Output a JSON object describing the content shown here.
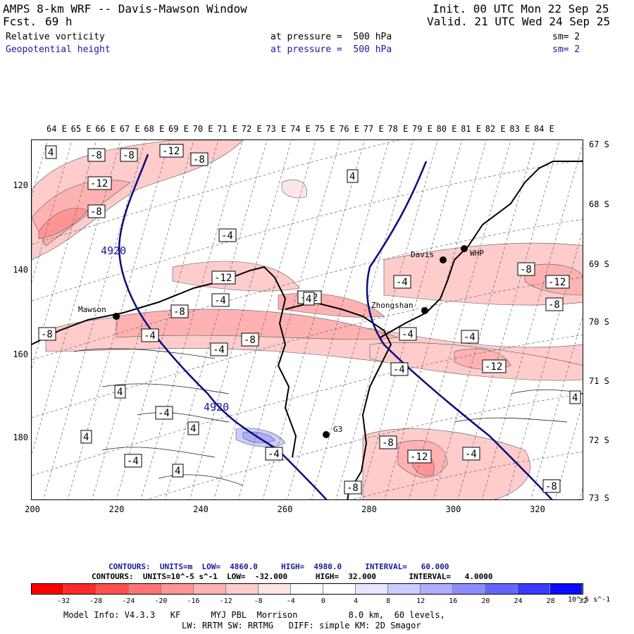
{
  "header": {
    "title_left": "AMPS 8-km WRF -- Davis-Mawson Window",
    "fcst_label": "Fcst.",
    "fcst_value": "69 h",
    "init": "Init. 00 UTC Mon 22 Sep 25",
    "valid": "Valid. 21 UTC Wed 24 Sep 25",
    "field1": {
      "name": "Relative vorticity",
      "pressure": "at pressure =  500 hPa",
      "sm": "sm= 2"
    },
    "field2": {
      "name": "Geopotential height",
      "pressure": "at pressure =  500 hPa",
      "sm": "sm= 2"
    }
  },
  "lon_labels": [
    "64 E",
    "65 E",
    "66 E",
    "67 E",
    "68 E",
    "69 E",
    "70 E",
    "71 E",
    "72 E",
    "73 E",
    "74 E",
    "75 E",
    "76 E",
    "77 E",
    "78 E",
    "79 E",
    "80 E",
    "81 E",
    "82 E",
    "83 E",
    "84 E"
  ],
  "lat_labels": [
    "67 S",
    "68 S",
    "69 S",
    "70 S",
    "71 S",
    "72 S",
    "73 S"
  ],
  "y_ticks": [
    "120",
    "140",
    "160",
    "180"
  ],
  "x_ticks": [
    "200",
    "220",
    "240",
    "260",
    "280",
    "300",
    "320"
  ],
  "stations": [
    {
      "name": "Davis"
    },
    {
      "name": "WHP"
    },
    {
      "name": "Mawson"
    },
    {
      "name": "Zhongshan"
    },
    {
      "name": "G3"
    }
  ],
  "height_labels": [
    "4920",
    "4920"
  ],
  "vort_labels": [
    "4",
    "-8",
    "-8",
    "-12",
    "-8",
    "-12",
    "-8",
    "-4",
    "4",
    "-12",
    "-4",
    "-8",
    "-12",
    "-8",
    "-4",
    "-12",
    "-4",
    "-8",
    "-8",
    "-4",
    "-4",
    "-4",
    "-12",
    "4",
    "-4",
    "4",
    "4",
    "-4",
    "4",
    "-4",
    "-8",
    "-12",
    "-4",
    "-8",
    "4",
    "-4",
    "-8",
    "4",
    "-8"
  ],
  "contour_info": {
    "line1": "CONTOURS:  UNITS=m  LOW=  4860.0     HIGH=  4980.0     INTERVAL=   60.000",
    "line2": "CONTOURS:  UNITS=10^-5 s^-1  LOW=  -32.000      HIGH=  32.000       INTERVAL=   4.0000"
  },
  "colorbar": {
    "colors": [
      "#ff0000",
      "#ff2a2a",
      "#ff5050",
      "#ff7474",
      "#ff9494",
      "#ffb2b2",
      "#ffcccc",
      "#ffe6e6",
      "#ffffff",
      "#ffffff",
      "#e6e6ff",
      "#ccccff",
      "#aeaeff",
      "#8c8cff",
      "#6464ff",
      "#3a3aff",
      "#0a0aff"
    ],
    "ticks": [
      "-32",
      "-28",
      "-24",
      "-20",
      "-16",
      "-12",
      "-8",
      "-4",
      "0",
      "4",
      "8",
      "12",
      "16",
      "20",
      "24",
      "28",
      "32"
    ],
    "unit": "10^-5 s^-1"
  },
  "model_info": {
    "line1": "Model Info: V4.3.3   KF      MYJ PBL  Morrison          8.0 km,  60 levels,",
    "line2": "LW: RRTM SW: RRTMG   DIFF: simple KM: 2D Smagor"
  }
}
